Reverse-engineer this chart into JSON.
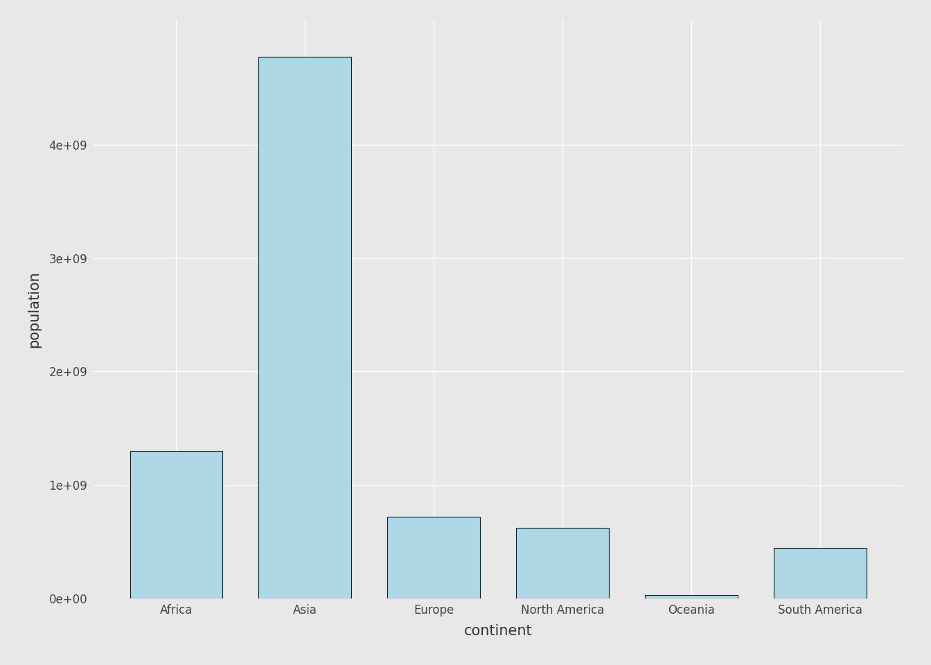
{
  "categories": [
    "Africa",
    "Asia",
    "Europe",
    "North America",
    "Oceania",
    "South America"
  ],
  "values": [
    1299000000.0,
    4777000000.0,
    720600000.0,
    622700000.0,
    33100000.0,
    443500000.0
  ],
  "bar_color": "#ADD8E6",
  "bar_edgecolor": "#1a1a1a",
  "bar_linewidth": 0.8,
  "xlabel": "continent",
  "ylabel": "population",
  "ylim": [
    0,
    5100000000.0
  ],
  "yticks": [
    0,
    1000000000.0,
    2000000000.0,
    3000000000.0,
    4000000000.0
  ],
  "ytick_labels": [
    "0e+00",
    "1e+09",
    "2e+09",
    "3e+09",
    "4e+09"
  ],
  "background_color": "#E8E8E8",
  "panel_background": "#E8E8E8",
  "grid_color": "#FFFFFF",
  "grid_linewidth": 1.0,
  "xlabel_fontsize": 15,
  "ylabel_fontsize": 15,
  "tick_fontsize": 12,
  "tick_color": "#444444",
  "label_color": "#333333",
  "bar_width": 0.72
}
